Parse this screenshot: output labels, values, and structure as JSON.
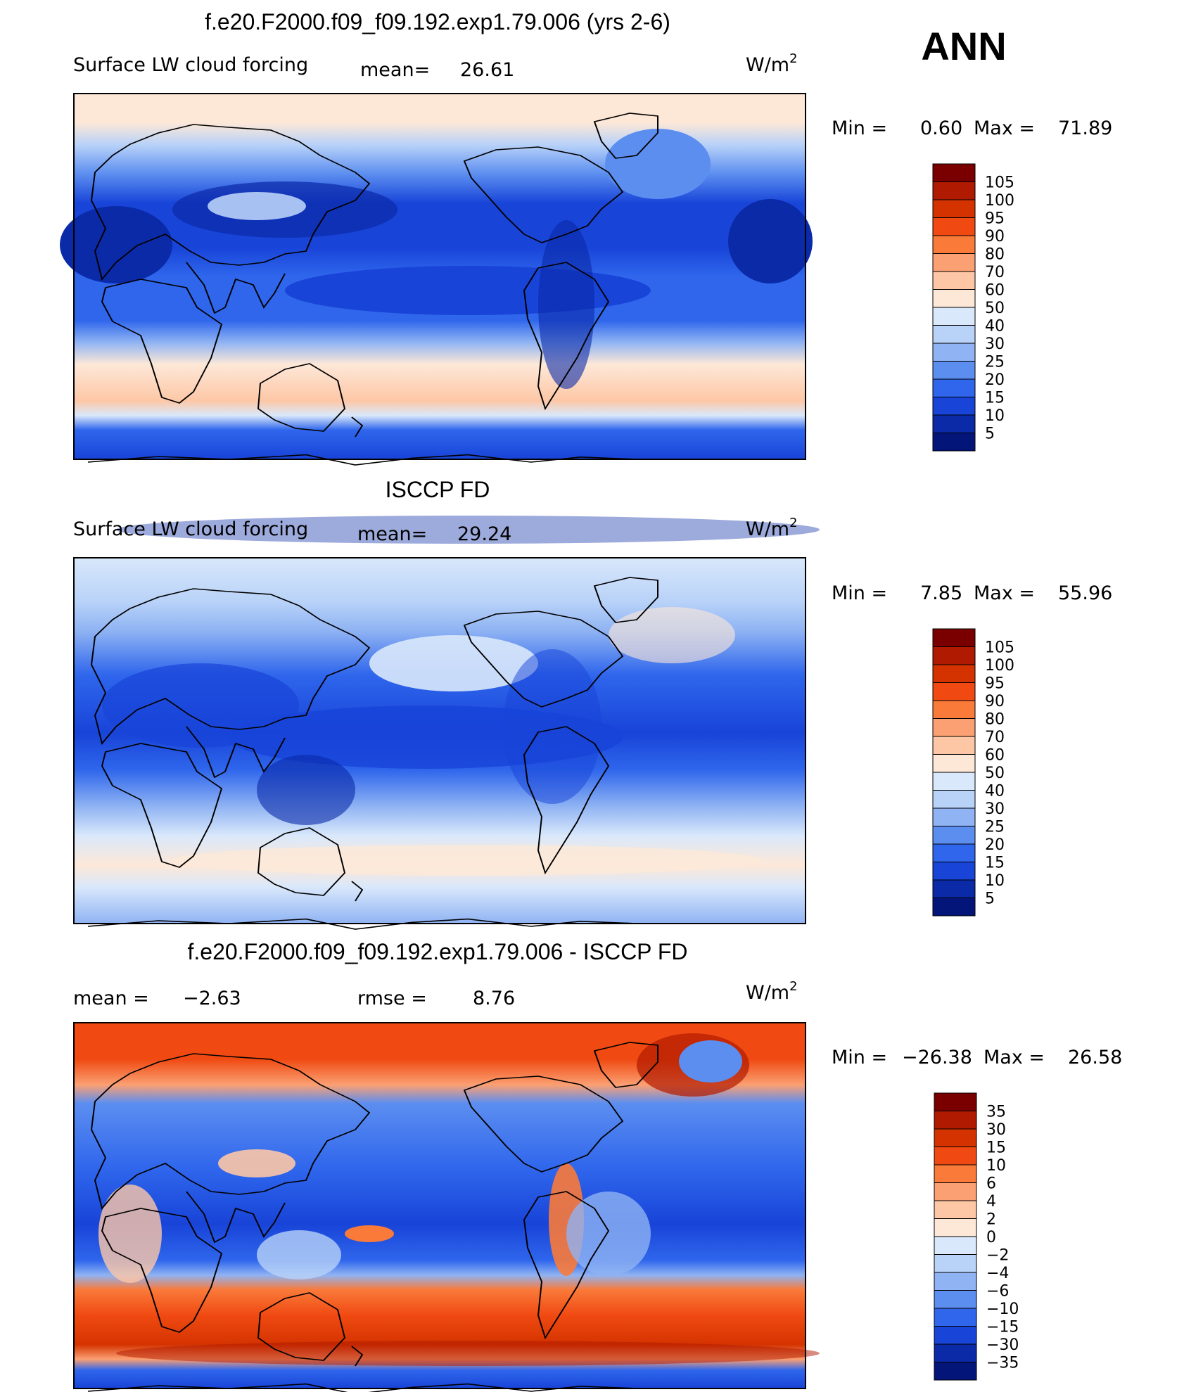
{
  "figure": {
    "season": "ANN",
    "units_base": "W/m",
    "units_sup": "2"
  },
  "chart_data": [
    {
      "type": "heatmap",
      "title": "f.e20.F2000.f09_f09.192.exp1.79.006 (yrs 2-6)",
      "variable": "Surface LW cloud forcing",
      "stat_label": "mean=",
      "stat_value": "26.61",
      "min_label": "Min =",
      "min_value": "0.60",
      "max_label": "Max =",
      "max_value": "71.89",
      "colorbar_levels": [
        "105",
        "100",
        "95",
        "90",
        "80",
        "70",
        "60",
        "50",
        "40",
        "30",
        "25",
        "20",
        "15",
        "10",
        "5"
      ],
      "colorbar_colors": [
        "#7a0000",
        "#b01a00",
        "#d43300",
        "#f04a12",
        "#fa7a3a",
        "#fba073",
        "#fdc7a6",
        "#fde8d8",
        "#d9e8fb",
        "#b8d2f8",
        "#8fb3f3",
        "#5c8ef0",
        "#2f66ec",
        "#1844d8",
        "#0a2aa8",
        "#04157a"
      ]
    },
    {
      "type": "heatmap",
      "title": "ISCCP FD",
      "variable": "Surface LW cloud forcing",
      "stat_label": "mean=",
      "stat_value": "29.24",
      "min_label": "Min =",
      "min_value": "7.85",
      "max_label": "Max =",
      "max_value": "55.96",
      "colorbar_levels": [
        "105",
        "100",
        "95",
        "90",
        "80",
        "70",
        "60",
        "50",
        "40",
        "30",
        "25",
        "20",
        "15",
        "10",
        "5"
      ],
      "colorbar_colors": [
        "#7a0000",
        "#b01a00",
        "#d43300",
        "#f04a12",
        "#fa7a3a",
        "#fba073",
        "#fdc7a6",
        "#fde8d8",
        "#d9e8fb",
        "#b8d2f8",
        "#8fb3f3",
        "#5c8ef0",
        "#2f66ec",
        "#1844d8",
        "#0a2aa8",
        "#04157a"
      ]
    },
    {
      "type": "heatmap",
      "title": "f.e20.F2000.f09_f09.192.exp1.79.006 - ISCCP FD",
      "stat_label": "mean =",
      "stat_value": "−2.63",
      "rmse_label": "rmse =",
      "rmse_value": "8.76",
      "min_label": "Min =",
      "min_value": "−26.38",
      "max_label": "Max =",
      "max_value": "26.58",
      "colorbar_levels": [
        "35",
        "30",
        "15",
        "10",
        "6",
        "4",
        "2",
        "0",
        "−2",
        "−4",
        "−6",
        "−10",
        "−15",
        "−30",
        "−35"
      ],
      "colorbar_colors": [
        "#7a0000",
        "#b01a00",
        "#d43300",
        "#f04a12",
        "#fa7a3a",
        "#fba073",
        "#fdc7a6",
        "#fde8d8",
        "#d9e8fb",
        "#b8d2f8",
        "#8fb3f3",
        "#5c8ef0",
        "#2f66ec",
        "#1844d8",
        "#0a2aa8",
        "#04157a"
      ]
    }
  ]
}
